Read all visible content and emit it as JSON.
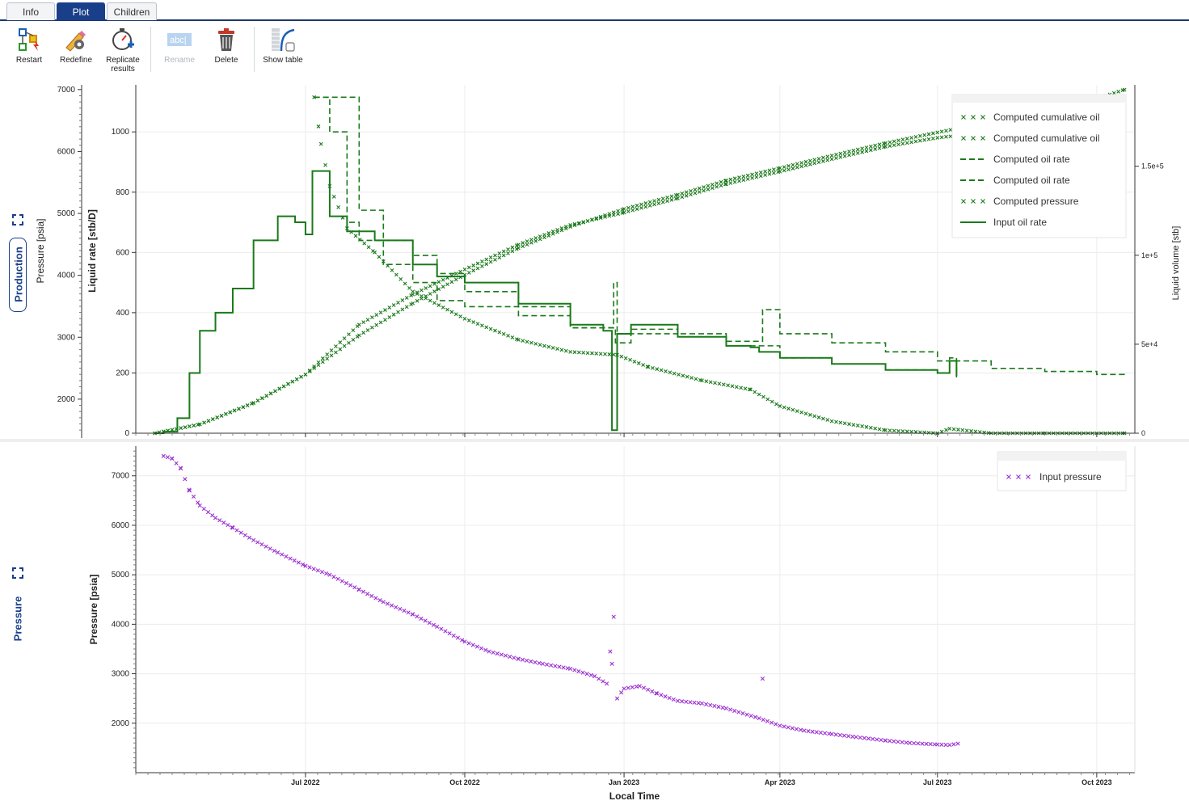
{
  "tabs": [
    {
      "label": "Info"
    },
    {
      "label": "Plot"
    },
    {
      "label": "Children"
    }
  ],
  "toolbar": {
    "restart": "Restart",
    "redefine": "Redefine",
    "replicate_line1": "Replicate",
    "replicate_line2": "results",
    "rename": "Rename",
    "delete": "Delete",
    "show_table": "Show table"
  },
  "panels": {
    "production": "Production",
    "pressure": "Pressure"
  },
  "colors": {
    "green": "#1a7a1a",
    "purple": "#9b30d0",
    "navy": "#1a3f8a"
  },
  "chart_data": [
    {
      "type": "line",
      "title": "",
      "xlabel": "",
      "x_ticks": [
        "Jul 2022",
        "Oct 2022",
        "Jan 2023",
        "Apr 2023",
        "Jul 2023",
        "Oct 2023"
      ],
      "y_left_outer": {
        "label": "Pressure [psia]",
        "ticks": [
          2000,
          3000,
          4000,
          5000,
          6000,
          7000
        ]
      },
      "y_left": {
        "label": "Liquid rate [stb/D]",
        "ticks": [
          0,
          200,
          400,
          600,
          800,
          1000
        ],
        "range": [
          0,
          1140
        ]
      },
      "y_right": {
        "label": "Liquid volume [stb]",
        "ticks": [
          "0",
          "5e+4",
          "1e+5",
          "1.5e+5"
        ],
        "range": [
          0,
          193000
        ]
      },
      "legend": {
        "position": "top-right",
        "entries": [
          {
            "name": "Computed cumulative oil",
            "style": "marker-x"
          },
          {
            "name": "Computed cumulative oil",
            "style": "marker-x"
          },
          {
            "name": "Computed oil rate",
            "style": "dashed"
          },
          {
            "name": "Computed oil rate",
            "style": "dashed"
          },
          {
            "name": "Computed pressure",
            "style": "marker-x"
          },
          {
            "name": "Input oil rate",
            "style": "solid"
          }
        ]
      },
      "series": [
        {
          "name": "Input oil rate",
          "axis": "left",
          "style": "solid",
          "x": [
            "2022-04-05",
            "2022-04-10",
            "2022-04-18",
            "2022-04-25",
            "2022-05-01",
            "2022-05-10",
            "2022-05-20",
            "2022-06-01",
            "2022-06-15",
            "2022-06-25",
            "2022-07-01",
            "2022-07-05",
            "2022-07-15",
            "2022-07-25",
            "2022-08-10",
            "2022-09-01",
            "2022-09-15",
            "2022-10-01",
            "2022-11-01",
            "2022-12-01",
            "2022-12-20",
            "2022-12-25",
            "2022-12-28",
            "2023-01-05",
            "2023-02-01",
            "2023-03-01",
            "2023-03-15",
            "2023-03-20",
            "2023-04-01",
            "2023-05-01",
            "2023-06-01",
            "2023-07-01",
            "2023-07-08",
            "2023-07-12"
          ],
          "values": [
            0,
            5,
            50,
            200,
            340,
            400,
            480,
            640,
            720,
            700,
            660,
            870,
            720,
            670,
            640,
            560,
            520,
            500,
            430,
            360,
            340,
            10,
            330,
            360,
            320,
            290,
            285,
            270,
            250,
            230,
            210,
            200,
            240,
            190
          ]
        },
        {
          "name": "Computed oil rate",
          "axis": "left",
          "style": "dashed",
          "x": [
            "2022-07-06",
            "2022-07-15",
            "2022-07-25",
            "2022-08-01",
            "2022-08-15",
            "2022-09-01",
            "2022-09-15",
            "2022-10-01",
            "2022-11-01",
            "2022-12-01",
            "2022-12-26",
            "2022-12-28",
            "2023-01-05",
            "2023-02-01",
            "2023-03-01",
            "2023-03-22",
            "2023-04-01",
            "2023-05-01",
            "2023-06-01",
            "2023-07-01",
            "2023-08-01",
            "2023-09-01",
            "2023-10-01",
            "2023-10-17"
          ],
          "values": [
            1115,
            1115,
            1115,
            740,
            640,
            590,
            530,
            470,
            420,
            350,
            500,
            330,
            345,
            330,
            305,
            410,
            330,
            300,
            270,
            240,
            215,
            205,
            195,
            185
          ]
        },
        {
          "name": "Computed oil rate",
          "axis": "left",
          "style": "dashed",
          "x": [
            "2022-07-06",
            "2022-07-15",
            "2022-07-25",
            "2022-08-01",
            "2022-08-15",
            "2022-09-01",
            "2022-09-15",
            "2022-10-01",
            "2022-11-01",
            "2022-12-01",
            "2022-12-27",
            "2023-01-05",
            "2023-02-01",
            "2023-03-01",
            "2023-04-01",
            "2023-05-01",
            "2023-06-01",
            "2023-07-01",
            "2023-07-08",
            "2023-07-12"
          ],
          "values": [
            1115,
            1000,
            700,
            640,
            560,
            500,
            440,
            420,
            390,
            350,
            300,
            330,
            320,
            290,
            250,
            230,
            210,
            200,
            250,
            185
          ]
        },
        {
          "name": "Computed pressure",
          "axis": "left",
          "style": "marker-x",
          "x": [
            "2022-07-06",
            "2022-07-10",
            "2022-07-15",
            "2022-07-25",
            "2022-08-10",
            "2022-09-01",
            "2022-10-01",
            "2022-11-01",
            "2022-12-01",
            "2022-12-28",
            "2023-01-15",
            "2023-02-15",
            "2023-03-15",
            "2023-04-01",
            "2023-05-01",
            "2023-06-01",
            "2023-07-01",
            "2023-07-08",
            "2023-08-01",
            "2023-09-01",
            "2023-10-01",
            "2023-10-17"
          ],
          "values": [
            1115,
            960,
            820,
            680,
            600,
            470,
            380,
            310,
            270,
            260,
            220,
            175,
            145,
            90,
            40,
            10,
            0,
            15,
            0,
            0,
            0,
            0
          ]
        },
        {
          "name": "Computed cumulative oil",
          "axis": "right",
          "style": "marker-x",
          "x": [
            "2022-04-05",
            "2022-05-01",
            "2022-06-01",
            "2022-07-01",
            "2022-08-01",
            "2022-09-01",
            "2022-10-01",
            "2022-11-01",
            "2022-12-01",
            "2023-01-01",
            "2023-02-01",
            "2023-03-01",
            "2023-04-01",
            "2023-05-01",
            "2023-06-01",
            "2023-07-01",
            "2023-08-01",
            "2023-09-01",
            "2023-10-01",
            "2023-10-17"
          ],
          "values": [
            0,
            5000,
            17000,
            33000,
            55000,
            73000,
            89000,
            104000,
            116000,
            126000,
            134000,
            142000,
            149000,
            156000,
            163000,
            169000,
            175000,
            181000,
            188000,
            193000
          ]
        },
        {
          "name": "Computed cumulative oil",
          "axis": "right",
          "style": "marker-x",
          "x": [
            "2022-04-05",
            "2022-05-01",
            "2022-06-01",
            "2022-07-01",
            "2022-08-01",
            "2022-09-01",
            "2022-10-01",
            "2022-11-01",
            "2022-12-01",
            "2023-01-01",
            "2023-02-01",
            "2023-03-01",
            "2023-04-01",
            "2023-05-01",
            "2023-06-01",
            "2023-07-01",
            "2023-07-20"
          ],
          "values": [
            0,
            5000,
            17000,
            33000,
            61000,
            78000,
            92000,
            106000,
            117000,
            124000,
            132000,
            140000,
            147000,
            154000,
            161000,
            166000,
            168000
          ]
        }
      ]
    },
    {
      "type": "scatter",
      "title": "",
      "xlabel": "Local Time",
      "ylabel": "Pressure [psia]",
      "x_ticks": [
        "Jul 2022",
        "Oct 2022",
        "Jan 2023",
        "Apr 2023",
        "Jul 2023",
        "Oct 2023"
      ],
      "y_ticks": [
        2000,
        3000,
        4000,
        5000,
        6000,
        7000
      ],
      "ylim": [
        1000,
        7600
      ],
      "legend": {
        "position": "top-right",
        "entries": [
          {
            "name": "Input pressure",
            "style": "marker-x"
          }
        ]
      },
      "series": [
        {
          "name": "Input pressure",
          "x": [
            "2022-04-10",
            "2022-04-15",
            "2022-04-20",
            "2022-04-25",
            "2022-05-01",
            "2022-05-10",
            "2022-05-20",
            "2022-06-01",
            "2022-06-15",
            "2022-07-01",
            "2022-07-15",
            "2022-08-01",
            "2022-08-15",
            "2022-09-01",
            "2022-09-15",
            "2022-10-01",
            "2022-10-15",
            "2022-11-01",
            "2022-11-15",
            "2022-12-01",
            "2022-12-15",
            "2022-12-22",
            "2022-12-24",
            "2022-12-26",
            "2022-12-28",
            "2023-01-01",
            "2023-01-10",
            "2023-01-20",
            "2023-02-01",
            "2023-02-15",
            "2023-03-01",
            "2023-03-20",
            "2023-04-01",
            "2023-04-15",
            "2023-05-01",
            "2023-05-15",
            "2023-06-01",
            "2023-06-15",
            "2023-07-01",
            "2023-07-08",
            "2023-07-15"
          ],
          "values": [
            7400,
            7350,
            7150,
            6700,
            6400,
            6150,
            5950,
            5700,
            5450,
            5180,
            5000,
            4700,
            4450,
            4200,
            3950,
            3650,
            3450,
            3300,
            3200,
            3100,
            2950,
            2800,
            2780,
            4150,
            2500,
            2700,
            2750,
            2600,
            2450,
            2400,
            2300,
            2100,
            1950,
            1850,
            1780,
            1720,
            1650,
            1600,
            1570,
            1560,
            1600
          ]
        },
        {
          "name": "",
          "x": [
            "2022-12-24",
            "2022-12-25",
            "2023-03-22"
          ],
          "values": [
            3450,
            3200,
            2900
          ]
        }
      ]
    }
  ]
}
